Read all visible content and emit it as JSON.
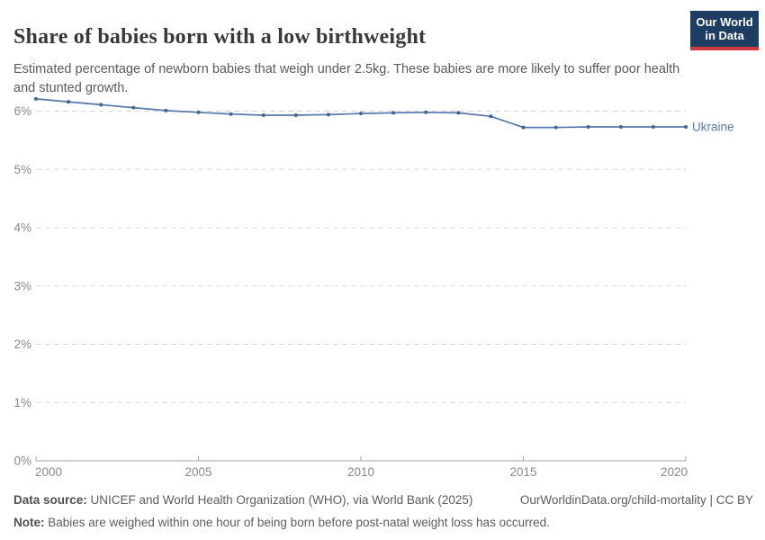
{
  "header": {
    "title": "Share of babies born with a low birthweight",
    "subtitle": "Estimated percentage of newborn babies that weigh under 2.5kg. These babies are more likely to suffer poor health and stunted growth.",
    "logo": {
      "line1": "Our World",
      "line2": "in Data"
    }
  },
  "chart_data": {
    "type": "line",
    "title": "Share of babies born with a low birthweight",
    "xlabel": "",
    "ylabel": "",
    "xlim": [
      2000,
      2020
    ],
    "ylim": [
      0,
      6
    ],
    "grid": "horizontal-dashed",
    "legend_position": "end-of-line-label",
    "x": [
      2000,
      2001,
      2002,
      2003,
      2004,
      2005,
      2006,
      2007,
      2008,
      2009,
      2010,
      2011,
      2012,
      2013,
      2014,
      2015,
      2016,
      2017,
      2018,
      2019,
      2020
    ],
    "series": [
      {
        "name": "Ukraine",
        "color": "#5878ab",
        "values": [
          6.21,
          6.16,
          6.11,
          6.06,
          6.01,
          5.98,
          5.95,
          5.93,
          5.93,
          5.94,
          5.96,
          5.97,
          5.98,
          5.97,
          5.91,
          5.72,
          5.72,
          5.73,
          5.73,
          5.73,
          5.73
        ]
      }
    ],
    "x_ticks": [
      2000,
      2005,
      2010,
      2015,
      2020
    ],
    "y_ticks": [
      {
        "value": 0,
        "label": "0%"
      },
      {
        "value": 1,
        "label": "1%"
      },
      {
        "value": 2,
        "label": "2%"
      },
      {
        "value": 3,
        "label": "3%"
      },
      {
        "value": 4,
        "label": "4%"
      },
      {
        "value": 5,
        "label": "5%"
      },
      {
        "value": 6,
        "label": "6%"
      }
    ]
  },
  "footer": {
    "datasource_label": "Data source:",
    "datasource_text": " UNICEF and World Health Organization (WHO), via World Bank (2025)",
    "link_text": "OurWorldinData.org/child-mortality | CC BY",
    "note_label": "Note:",
    "note_text": " Babies are weighed within one hour of being born before post-natal weight loss has occurred."
  },
  "colors": {
    "line_blue": "#5878ab",
    "marker_blue": "#46648f",
    "logo_bg": "#1d3d63",
    "logo_red": "#cf3b3e",
    "gridline": "#d8d8d8",
    "axis": "#a3a3a3",
    "tick_label": "#8a8a8a"
  }
}
